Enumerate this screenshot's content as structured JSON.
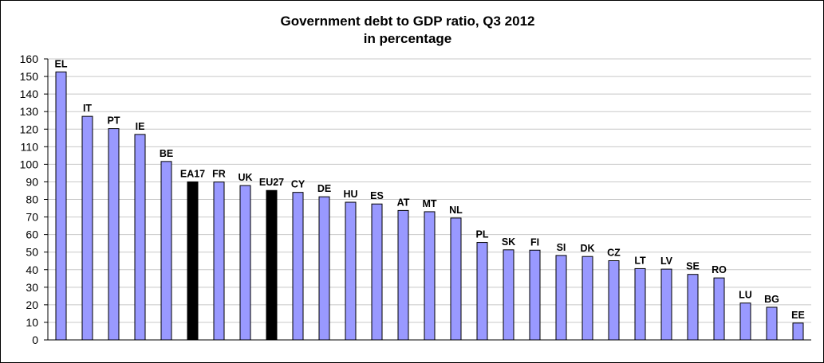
{
  "chart_data": {
    "type": "bar",
    "title": "Government debt to GDP ratio, Q3 2012",
    "subtitle": "in percentage",
    "xlabel": "",
    "ylabel": "",
    "ylim": [
      0,
      160
    ],
    "ytick_step": 10,
    "grid": true,
    "legend": "none",
    "categories": [
      "EL",
      "IT",
      "PT",
      "IE",
      "BE",
      "EA17",
      "FR",
      "UK",
      "EU27",
      "CY",
      "DE",
      "HU",
      "ES",
      "AT",
      "MT",
      "NL",
      "PL",
      "SK",
      "FI",
      "SI",
      "DK",
      "CZ",
      "LT",
      "LV",
      "SE",
      "RO",
      "LU",
      "BG",
      "EE"
    ],
    "values": [
      152.6,
      127.3,
      120.3,
      117.0,
      101.6,
      90.0,
      89.9,
      87.9,
      85.1,
      84.0,
      81.5,
      78.4,
      77.4,
      73.7,
      73.0,
      69.4,
      55.5,
      51.3,
      51.1,
      48.1,
      47.5,
      45.1,
      40.6,
      40.3,
      37.3,
      35.3,
      21.0,
      18.6,
      9.6
    ],
    "colors": {
      "bar": "#9999ff",
      "aggregate_bar": "#000000",
      "bar_outline": "#000000",
      "grid": "#c8c8c8"
    },
    "aggregates": [
      "EA17",
      "EU27"
    ]
  }
}
